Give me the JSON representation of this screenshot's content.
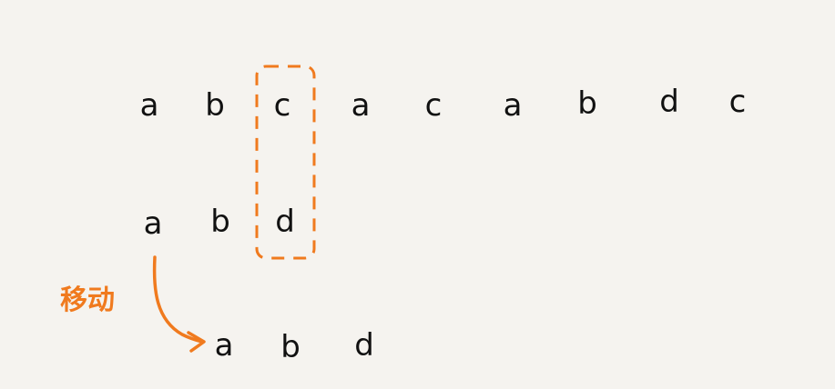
{
  "main_string": [
    "a",
    "b",
    "c",
    "a",
    "c",
    "a",
    "b",
    "d",
    "c"
  ],
  "pattern": [
    "a",
    "b",
    "d"
  ],
  "moved_pattern": [
    "a",
    "b",
    "d"
  ],
  "move_label": "移动",
  "colors": {
    "background": "#f5f3ef",
    "text": "#111111",
    "highlight": "#f07a1e"
  }
}
